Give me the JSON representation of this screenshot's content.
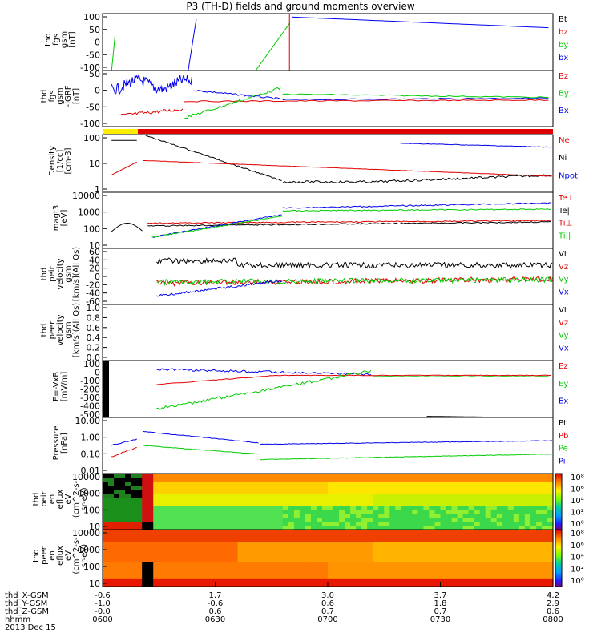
{
  "title": "P3 (TH-D) fields and ground moments overview",
  "date": "2013 Dec 15",
  "colors": {
    "black": "#000000",
    "red": "#e00000",
    "green": "#00cc00",
    "blue": "#0000ee",
    "yellow": "#ffee00"
  },
  "chart_data": {
    "type": "line",
    "x_label": "hhmm",
    "x_ticks": [
      "0600",
      "0630",
      "0700",
      "0730",
      "0800"
    ],
    "ephemeris": [
      {
        "label": "thd_X-GSM",
        "values": [
          "-0.6",
          "1.7",
          "3.0",
          "3.7",
          "4.2"
        ]
      },
      {
        "label": "thd_Y-GSM",
        "values": [
          "-1.0",
          "-0.6",
          "0.6",
          "1.8",
          "2.9"
        ]
      },
      {
        "label": "thd_Z-GSM",
        "values": [
          "-0.0",
          "0.6",
          "0.7",
          "0.7",
          "0.6"
        ]
      }
    ],
    "panels": [
      {
        "id": "fgs",
        "ylabel": [
          "thd",
          "fgs",
          "gsm",
          "[nT]"
        ],
        "ticks": [
          "100",
          "50",
          "0",
          "-50",
          "-100"
        ],
        "legend": [
          {
            "t": "Bt",
            "c": "black"
          },
          {
            "t": "bz",
            "c": "red"
          },
          {
            "t": "by",
            "c": "green"
          },
          {
            "t": "bx",
            "c": "blue"
          }
        ]
      },
      {
        "id": "fgs_dc",
        "ylabel": [
          "thd",
          "fgs",
          "gsm",
          "-IGRF",
          "[nT]"
        ],
        "ticks": [
          "50",
          "0",
          "-50",
          "-100"
        ],
        "legend": [
          {
            "t": "Bz",
            "c": "red"
          },
          {
            "t": "By",
            "c": "green"
          },
          {
            "t": "Bx",
            "c": "blue"
          }
        ]
      },
      {
        "id": "density",
        "ylabel": [
          "Density",
          "[1/cc]",
          "[cm-3]"
        ],
        "ticks": [
          "100",
          "10",
          "1"
        ],
        "legend": [
          {
            "t": "Ne",
            "c": "red"
          },
          {
            "t": "Ni",
            "c": "black"
          },
          {
            "t": "Npot",
            "c": "blue"
          }
        ]
      },
      {
        "id": "temp",
        "ylabel": [
          "magt3",
          "[eV]"
        ],
        "ticks": [
          "10000",
          "1000",
          "100",
          "10"
        ],
        "legend": [
          {
            "t": "Te⊥",
            "c": "red"
          },
          {
            "t": "Te||",
            "c": "black"
          },
          {
            "t": "Ti⊥",
            "c": "red"
          },
          {
            "t": "Ti||",
            "c": "green"
          }
        ]
      },
      {
        "id": "vi",
        "ylabel": [
          "thd",
          "peir",
          "velocity",
          "gsm",
          "[km/s](All Qs)"
        ],
        "ticks": [
          "60",
          "40",
          "20",
          "0",
          "-20",
          "-40",
          "-60"
        ],
        "legend": [
          {
            "t": "Vt",
            "c": "black"
          },
          {
            "t": "Vz",
            "c": "red"
          },
          {
            "t": "Vy",
            "c": "green"
          },
          {
            "t": "Vx",
            "c": "blue"
          }
        ]
      },
      {
        "id": "ve",
        "ylabel": [
          "thd",
          "peer",
          "velocity",
          "gsm",
          "[km/s](All Qs)"
        ],
        "ticks": [
          "1.0",
          "0.8",
          "0.6",
          "0.4",
          "0.2",
          "0.0"
        ],
        "legend": [
          {
            "t": "Vt",
            "c": "black"
          },
          {
            "t": "Vz",
            "c": "red"
          },
          {
            "t": "Vy",
            "c": "green"
          },
          {
            "t": "Vx",
            "c": "blue"
          }
        ]
      },
      {
        "id": "efield",
        "ylabel": [
          "E=-VxB",
          "[mV/m]"
        ],
        "ticks": [
          "100",
          "0",
          "-100",
          "-200",
          "-300",
          "-400",
          "-500"
        ],
        "legend": [
          {
            "t": "Ez",
            "c": "red"
          },
          {
            "t": "Ey",
            "c": "green"
          },
          {
            "t": "Ex",
            "c": "blue"
          }
        ]
      },
      {
        "id": "pressure",
        "ylabel": [
          "Pressure",
          "[nPa]"
        ],
        "ticks": [
          "10.00",
          "1.00",
          "0.10",
          "0.01"
        ],
        "legend": [
          {
            "t": "Pt",
            "c": "black"
          },
          {
            "t": "Pb",
            "c": "red"
          },
          {
            "t": "Pe",
            "c": "green"
          },
          {
            "t": "Pi",
            "c": "blue"
          }
        ]
      },
      {
        "id": "ion_spec",
        "ylabel": [
          "thd",
          "peir",
          "en",
          "eflux",
          "eV",
          "(cm^2-s-",
          "sr-eV)"
        ],
        "ticks": [
          "10000",
          "1000",
          "100",
          "10"
        ],
        "colorbar": [
          "10⁸",
          "10⁶",
          "10⁴",
          "10²",
          "10⁰"
        ]
      },
      {
        "id": "ele_spec",
        "ylabel": [
          "thd",
          "peer",
          "en",
          "eflux",
          "eV",
          "(cm^2-s-",
          "sr-eV)"
        ],
        "ticks": [
          "10000",
          "1000",
          "100",
          "10"
        ],
        "colorbar": [
          "10⁸",
          "10⁶",
          "10⁴",
          "10²",
          "10⁰"
        ]
      }
    ]
  }
}
